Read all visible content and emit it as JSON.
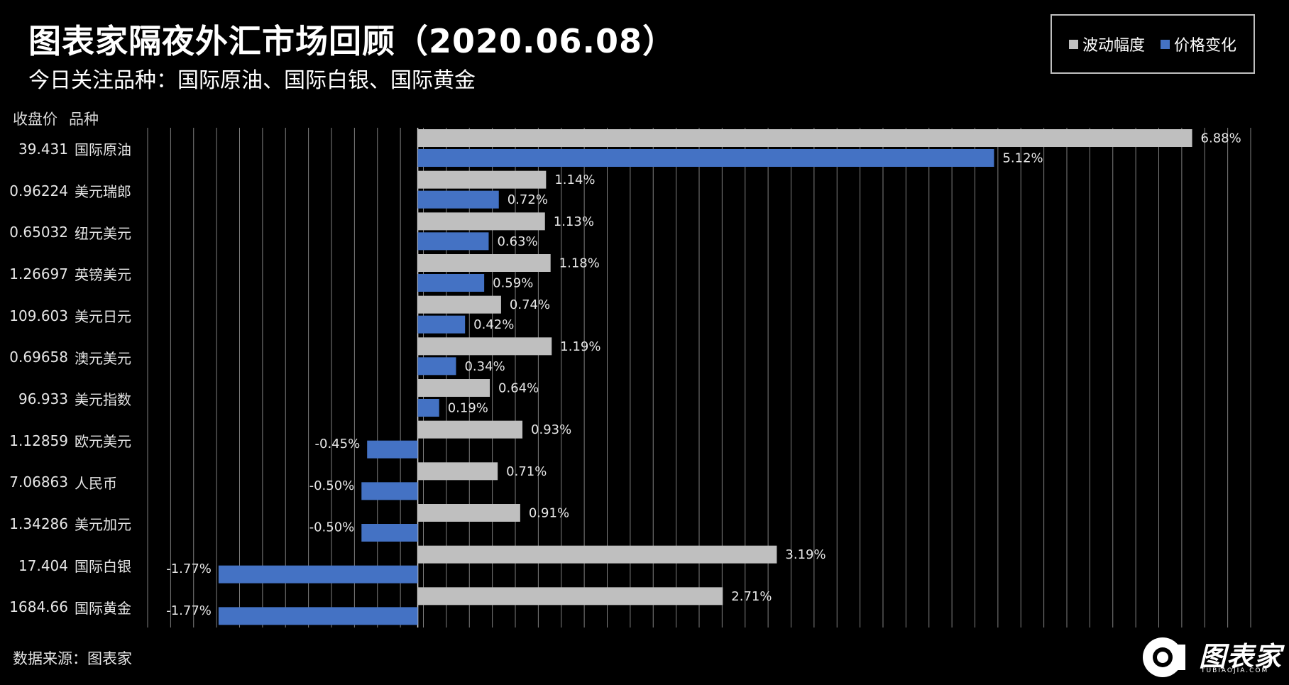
{
  "header": {
    "title": "图表家隔夜外汇市场回顾（2020.06.08）",
    "subtitle": "今日关注品种：国际原油、国际白银、国际黄金"
  },
  "legend": {
    "volatility_label": "波动幅度",
    "change_label": "价格变化"
  },
  "columns": {
    "price_header": "收盘价",
    "name_header": "品种"
  },
  "colors": {
    "volatility": "#bfbfbf",
    "change": "#4472c4",
    "background": "#000000",
    "grid": "#7f7f7f"
  },
  "chart_data": {
    "type": "bar",
    "orientation": "horizontal",
    "categories": [
      "国际原油",
      "美元瑞郎",
      "纽元美元",
      "英镑美元",
      "美元日元",
      "澳元美元",
      "美元指数",
      "欧元美元",
      "人民币",
      "美元加元",
      "国际白银",
      "国际黄金"
    ],
    "closing_prices": [
      "39.431",
      "0.96224",
      "0.65032",
      "1.26697",
      "109.603",
      "0.69658",
      "96.933",
      "1.12859",
      "7.06863",
      "1.34286",
      "17.404",
      "1684.66"
    ],
    "series": [
      {
        "name": "波动幅度",
        "values": [
          6.88,
          1.14,
          1.13,
          1.18,
          0.74,
          1.19,
          0.64,
          0.93,
          0.71,
          0.91,
          3.19,
          2.71
        ],
        "labels": [
          "6.88%",
          "1.14%",
          "1.13%",
          "1.18%",
          "0.74%",
          "1.19%",
          "0.64%",
          "0.93%",
          "0.71%",
          "0.91%",
          "3.19%",
          "2.71%"
        ]
      },
      {
        "name": "价格变化",
        "values": [
          5.12,
          0.72,
          0.63,
          0.59,
          0.42,
          0.34,
          0.19,
          -0.45,
          -0.5,
          -0.5,
          -1.77,
          -1.77
        ],
        "labels": [
          "5.12%",
          "0.72%",
          "0.63%",
          "0.59%",
          "0.42%",
          "0.34%",
          "0.19%",
          "-0.45%",
          "-0.50%",
          "-0.50%",
          "-1.77%",
          "-1.77%"
        ]
      }
    ],
    "xlim": [
      -2.4,
      7.4
    ],
    "grid": true
  },
  "footer": {
    "source": "数据来源：图表家",
    "logo_text": "图表家",
    "logo_subtext": "TUBIAOJIA.COM"
  }
}
